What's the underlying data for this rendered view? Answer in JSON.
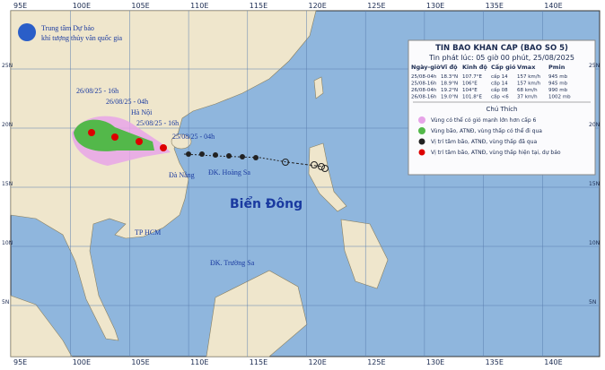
{
  "header": {
    "agency_line1": "Trung tâm Dự báo",
    "agency_line2": "khí tượng thủy văn quốc gia"
  },
  "lon_labels": [
    "95E",
    "100E",
    "105E",
    "110E",
    "115E",
    "120E",
    "125E",
    "130E",
    "135E",
    "140E"
  ],
  "lat_labels": [
    "25N",
    "20N",
    "15N",
    "10N",
    "5N"
  ],
  "bulletin": {
    "title": "TIN BAO KHAN CAP (BAO SO 5)",
    "issued": "Tin phát lúc: 05 giờ 00 phút, 25/08/2025",
    "table": {
      "header": [
        "Ngày-giờ",
        "Vĩ độ",
        "Kinh độ",
        "Cấp gió",
        "Vmax",
        "Pmin"
      ],
      "rows": [
        [
          "25/08-04h",
          "18.3°N",
          "107.7°E",
          "cấp 14",
          "157 km/h",
          "945 mb"
        ],
        [
          "25/08-16h",
          "18.9°N",
          "106°E",
          "cấp 14",
          "157 km/h",
          "945 mb"
        ],
        [
          "26/08-04h",
          "19.2°N",
          "104°E",
          "cấp 08",
          "68 km/h",
          "990 mb"
        ],
        [
          "26/08-16h",
          "19.0°N",
          "101.8°E",
          "cấp <6",
          "37 km/h",
          "1002 mb"
        ]
      ]
    }
  },
  "legend": {
    "title": "Chú Thích",
    "items": [
      "Vùng có thể có gió mạnh lớn hơn cấp 6",
      "Vùng bão, ATNĐ, vùng thấp có thể đi qua",
      "Vị trí tâm bão, ATNĐ, vùng thấp đã qua",
      "Vị trí tâm bão, ATNĐ, vùng thấp hiện tại, dự báo"
    ]
  },
  "map_labels": {
    "t1": "26/08/25 - 16h",
    "t2": "26/08/25 - 04h",
    "hanoi": "Hà Nội",
    "t3": "25/08/25 - 16h",
    "t4": "25/08/25 - 04h",
    "danang": "Đà Nẵng",
    "hoangsa": "ĐK. Hoàng Sa",
    "biendong": "Biển Đông",
    "hcm": "TP HCM",
    "truongsa": "ĐK. Trường Sa"
  }
}
